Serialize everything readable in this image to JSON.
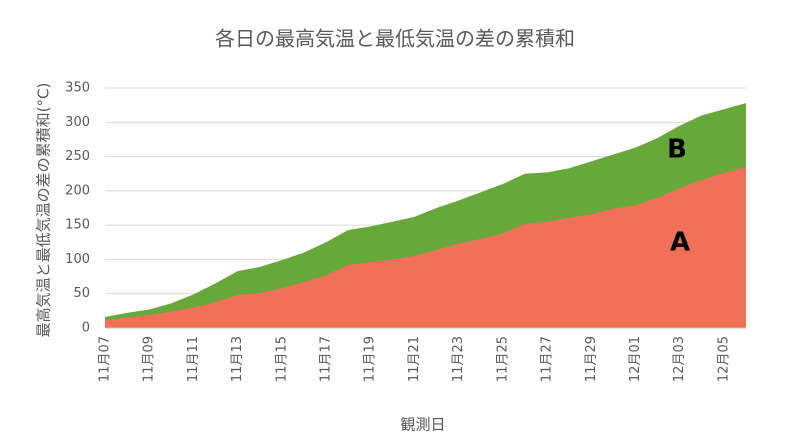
{
  "chart_data": {
    "type": "area",
    "title": "各日の最高気温と最低気温の差の累積和",
    "x_label": "観測日",
    "y_label": "最高気温と最低気温の差の累積和(°C)",
    "categories": [
      "11月07",
      null,
      "11月09",
      null,
      "11月11",
      null,
      "11月13",
      null,
      "11月15",
      null,
      "11月17",
      null,
      "11月19",
      null,
      "11月21",
      null,
      "11月23",
      null,
      "11月25",
      null,
      "11月27",
      null,
      "11月29",
      null,
      "12月01",
      null,
      "12月03",
      null,
      "12月05",
      null
    ],
    "series": [
      {
        "name": "A",
        "color": "#f07058",
        "values": [
          12,
          15,
          19,
          24,
          30,
          38,
          48,
          51,
          58,
          67,
          77,
          92,
          96,
          100,
          105,
          114,
          123,
          130,
          138,
          152,
          155,
          161,
          166,
          174,
          179,
          190,
          204,
          216,
          226,
          235
        ]
      },
      {
        "name": "B",
        "color": "#66a83a",
        "values": [
          16,
          22,
          27,
          36,
          49,
          65,
          83,
          89,
          99,
          110,
          125,
          143,
          148,
          155,
          162,
          175,
          186,
          198,
          210,
          225,
          227,
          233,
          243,
          253,
          263,
          277,
          295,
          310,
          319,
          328
        ]
      }
    ],
    "ylim": [
      0,
      350
    ],
    "yticks": [
      0,
      50,
      100,
      150,
      200,
      250,
      300,
      350
    ],
    "grid": true
  }
}
